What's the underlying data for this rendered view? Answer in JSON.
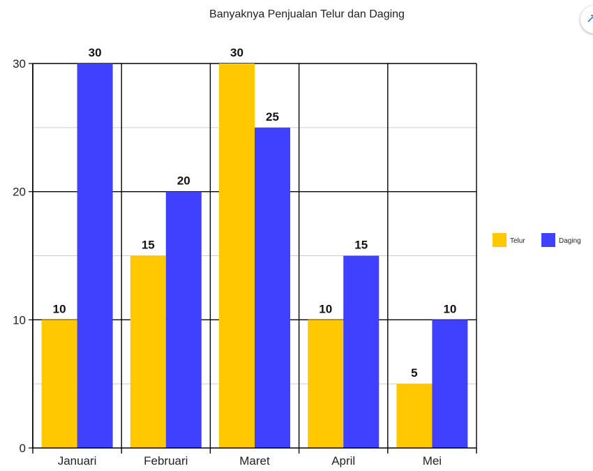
{
  "chart_data": {
    "type": "bar",
    "title": "Banyaknya Penjualan Telur dan Daging",
    "xlabel": "",
    "ylabel": "",
    "categories": [
      "Januari",
      "Februari",
      "Maret",
      "April",
      "Mei"
    ],
    "series": [
      {
        "name": "Telur",
        "values": [
          10,
          15,
          30,
          10,
          5
        ],
        "color": "#ffc800"
      },
      {
        "name": "Daging",
        "values": [
          30,
          20,
          25,
          15,
          10
        ],
        "color": "#4040ff"
      }
    ],
    "ylim": [
      0,
      30
    ],
    "yticks": [
      "0",
      "10",
      "20",
      "30"
    ],
    "grid": true,
    "legend_position": "right",
    "data_labels": true
  }
}
